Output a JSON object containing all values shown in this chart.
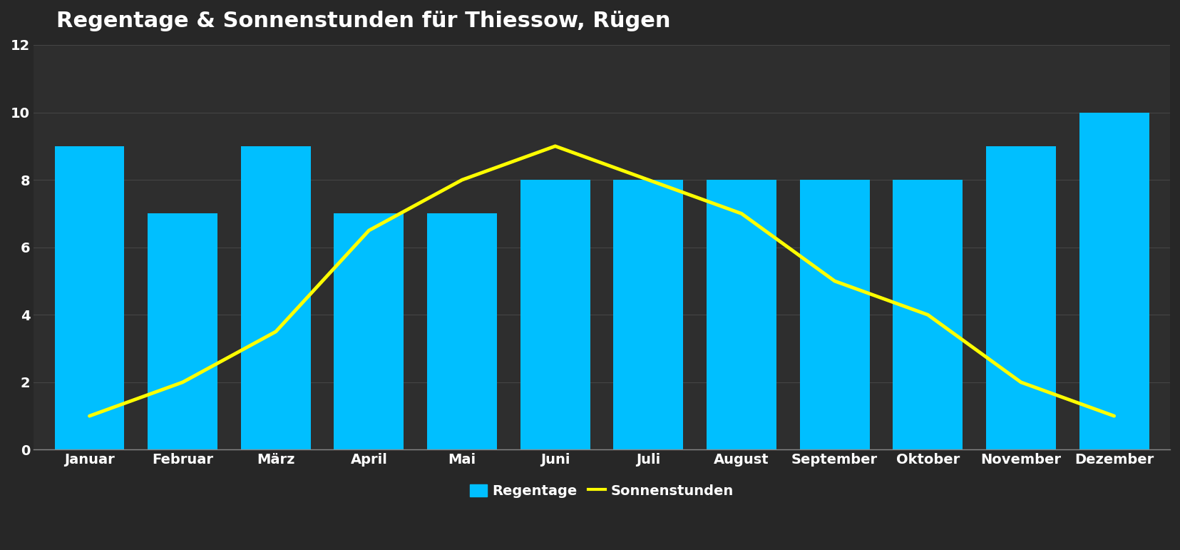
{
  "title": "Regentage & Sonnenstunden für Thiessow, Rügen",
  "months": [
    "Januar",
    "Februar",
    "März",
    "April",
    "Mai",
    "Juni",
    "Juli",
    "August",
    "September",
    "Oktober",
    "November",
    "Dezember"
  ],
  "regentage": [
    9,
    7,
    9,
    7,
    7,
    8,
    8,
    8,
    8,
    8,
    9,
    10
  ],
  "sonnenstunden": [
    1,
    2,
    3.5,
    6.5,
    8,
    9,
    8,
    7,
    5,
    4,
    2,
    1
  ],
  "bar_color": "#00BFFF",
  "line_color": "#FFFF00",
  "bg_dark": "#2a2a2a",
  "bg_mid": "#3d3d3d",
  "title_color": "#ffffff",
  "tick_color": "#ffffff",
  "label_color": "#ffffff",
  "grid_color": "#505050",
  "ylim": [
    0,
    12
  ],
  "yticks": [
    0,
    2,
    4,
    6,
    8,
    10,
    12
  ],
  "title_fontsize": 22,
  "tick_fontsize": 14,
  "legend_fontsize": 14,
  "bar_width": 0.75,
  "line_width": 3.5
}
